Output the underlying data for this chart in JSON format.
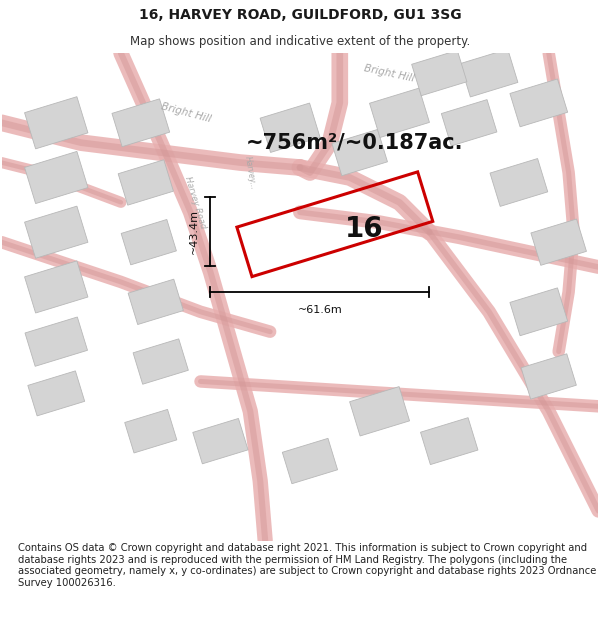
{
  "title": "16, HARVEY ROAD, GUILDFORD, GU1 3SG",
  "subtitle": "Map shows position and indicative extent of the property.",
  "footer": "Contains OS data © Crown copyright and database right 2021. This information is subject to Crown copyright and database rights 2023 and is reproduced with the permission of HM Land Registry. The polygons (including the associated geometry, namely x, y co-ordinates) are subject to Crown copyright and database rights 2023 Ordnance Survey 100026316.",
  "area_label": "~756m²/~0.187ac.",
  "width_label": "~61.6m",
  "height_label": "~43.4m",
  "plot_number": "16",
  "title_fontsize": 10,
  "subtitle_fontsize": 8.5,
  "footer_fontsize": 7.2,
  "road_color": "#e8b0b0",
  "road_color2": "#d49898",
  "building_color": "#d4d4d4",
  "building_edge": "#b8b8b8",
  "map_bg": "#f0eeee",
  "white_bg": "#ffffff"
}
